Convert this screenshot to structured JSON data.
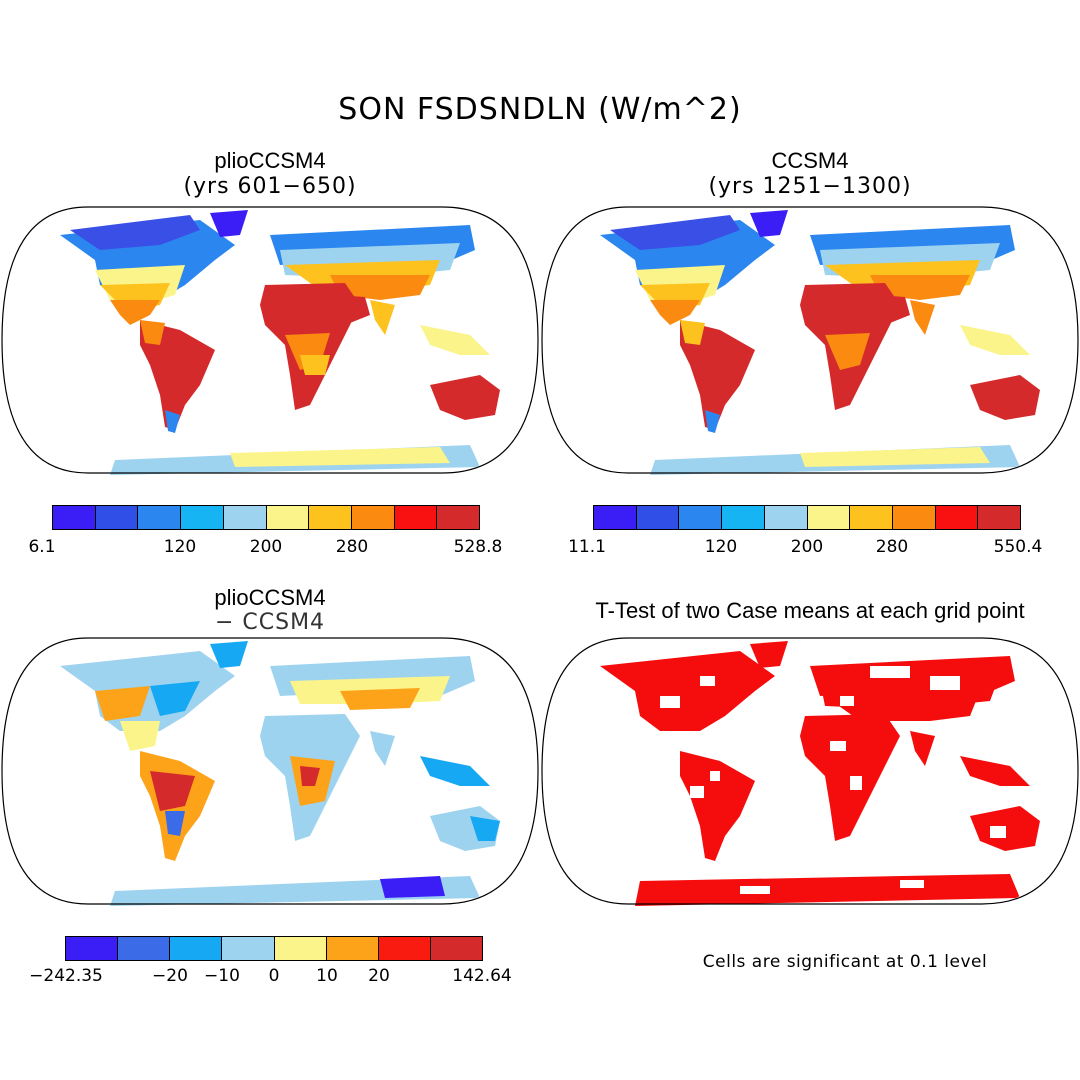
{
  "title": "SON FSDSNDLN (W/m^2)",
  "panels": [
    {
      "id": "top-left",
      "title": "plioCCSM4",
      "subtitle": "(yrs 601−650)",
      "colorbar": {
        "colors": [
          "#3a1ef5",
          "#2f4fe6",
          "#2b87ef",
          "#16b4f3",
          "#9ed3ef",
          "#fbf48a",
          "#fdc21e",
          "#fb8a10",
          "#f91010",
          "#d42a2c"
        ],
        "ticks": [
          "6.1",
          "120",
          "200",
          "280",
          "528.8"
        ]
      }
    },
    {
      "id": "top-right",
      "title": "CCSM4",
      "subtitle": "(yrs 1251−1300)",
      "colorbar": {
        "colors": [
          "#3a1ef5",
          "#2f4fe6",
          "#2b87ef",
          "#16b4f3",
          "#9ed3ef",
          "#fbf48a",
          "#fdc21e",
          "#fb8a10",
          "#f91010",
          "#d42a2c"
        ],
        "ticks": [
          "11.1",
          "120",
          "200",
          "280",
          "550.4"
        ]
      }
    },
    {
      "id": "bottom-left",
      "title": "plioCCSM4",
      "subtitle": "− CCSM4",
      "colorbar": {
        "colors": [
          "#3a1ef5",
          "#3b6be6",
          "#16a8f3",
          "#9ed3ef",
          "#fbf48a",
          "#fca31a",
          "#f91a10",
          "#d42a2c"
        ],
        "ticks": [
          "−242.35",
          "−20",
          "−10",
          "0",
          "10",
          "20",
          "142.64"
        ]
      }
    },
    {
      "id": "bottom-right",
      "title": "T-Test of two Case means at each grid point",
      "note": "Cells are significant at 0.1 level"
    }
  ],
  "colors": {
    "significant": "#f50d0d",
    "outline": "#000000"
  }
}
